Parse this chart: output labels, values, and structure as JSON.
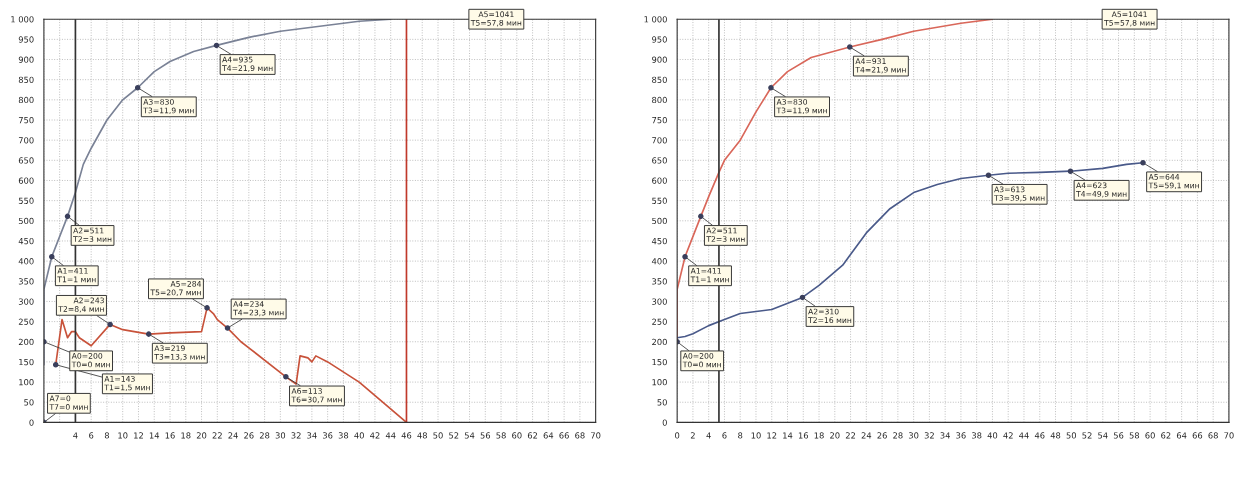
{
  "chart_data": [
    {
      "type": "line",
      "xlim": [
        0,
        70
      ],
      "ylim": [
        0,
        1000
      ],
      "xticks": [
        {
          "value": 0,
          "label": null
        },
        {
          "value": 2,
          "label": null
        },
        4,
        6,
        8,
        10,
        12,
        14,
        16,
        18,
        20,
        22,
        24,
        26,
        28,
        30,
        32,
        34,
        36,
        38,
        40,
        42,
        44,
        46,
        48,
        50,
        52,
        54,
        56,
        58,
        60,
        62,
        64,
        66,
        68,
        70
      ],
      "yticks": [
        0,
        50,
        100,
        150,
        200,
        250,
        300,
        350,
        400,
        450,
        500,
        550,
        600,
        650,
        700,
        750,
        800,
        850,
        900,
        950,
        {
          "value": 1000,
          "label": "1 000"
        }
      ],
      "grid": true,
      "marker": "none",
      "line_style": "solid",
      "series": [
        {
          "color": "#7a8296",
          "x": [
            0,
            0,
            1,
            3,
            4,
            5,
            6,
            8,
            10,
            11.9,
            14,
            16,
            19,
            21.9,
            26,
            30,
            36,
            40,
            44
          ],
          "values": [
            143,
            330,
            411,
            511,
            570,
            640,
            680,
            750,
            800,
            830,
            870,
            895,
            920,
            935,
            955,
            970,
            985,
            995,
            1000
          ]
        },
        {
          "color": "#c8523a",
          "x": [
            1.5,
            2.3,
            3,
            3.5,
            4,
            4.5,
            6,
            8.4,
            10,
            13.3,
            16,
            20,
            20.7,
            21.5,
            22,
            23.3,
            25,
            26,
            30.7,
            32,
            32.5,
            33.5,
            34,
            34.5,
            36,
            40,
            46
          ],
          "values": [
            143,
            255,
            210,
            225,
            225,
            210,
            190,
            243,
            230,
            219,
            222,
            225,
            284,
            270,
            255,
            234,
            200,
            185,
            113,
            95,
            165,
            160,
            150,
            165,
            150,
            100,
            0
          ]
        }
      ],
      "ref_lines": [
        {
          "axis": "x",
          "value": 4,
          "color": "#333333"
        },
        {
          "axis": "x",
          "value": 46,
          "color": "#c0392b"
        }
      ],
      "annotations": [
        {
          "text": "A0=200\nT0=0 мин",
          "x": 0,
          "y": 200
        },
        {
          "text": "A1=143\nT1=1,5 мин",
          "x": 1.5,
          "y": 143
        },
        {
          "text": "A1=411\nT1=1 мин",
          "x": 1,
          "y": 411
        },
        {
          "text": "A2=511\nT2=3 мин",
          "x": 3,
          "y": 511
        },
        {
          "text": "A3=830\nT3=11,9 мин",
          "x": 11.9,
          "y": 830
        },
        {
          "text": "A4=935\nT4=21,9 мин",
          "x": 21.9,
          "y": 935
        },
        {
          "text": "A2=243\nT2=8,4 мин",
          "x": 8.4,
          "y": 243
        },
        {
          "text": "A3=219\nT3=13,3 мин",
          "x": 13.3,
          "y": 219
        },
        {
          "text": "A5=284\nT5=20,7 мин",
          "x": 20.7,
          "y": 284
        },
        {
          "text": "A4=234\nT4=23,3 мин",
          "x": 23.3,
          "y": 234
        },
        {
          "text": "A6=113\nT6=30,7 мин",
          "x": 30.7,
          "y": 113
        },
        {
          "text": "A7=0\nT7=0 мин",
          "x": 0,
          "y": 0
        },
        "A5=1041\nT5=57,8 мин"
      ]
    },
    {
      "type": "line",
      "xlim": [
        0,
        70
      ],
      "ylim": [
        0,
        1000
      ],
      "xticks": [
        0,
        2,
        4,
        6,
        8,
        10,
        12,
        14,
        16,
        18,
        20,
        22,
        24,
        26,
        28,
        30,
        32,
        34,
        36,
        38,
        40,
        42,
        44,
        46,
        48,
        50,
        52,
        54,
        56,
        58,
        60,
        62,
        64,
        66,
        68,
        70
      ],
      "yticks": [
        0,
        50,
        100,
        150,
        200,
        250,
        300,
        350,
        400,
        450,
        500,
        550,
        600,
        650,
        700,
        750,
        800,
        850,
        900,
        950,
        {
          "value": 1000,
          "label": "1 000"
        }
      ],
      "grid": true,
      "marker": "none",
      "line_style": "solid",
      "series": [
        {
          "color": "#d9675a",
          "x": [
            0,
            0,
            1,
            3,
            4,
            5.3,
            6,
            8,
            10,
            11.9,
            14,
            17,
            21.9,
            26,
            30,
            36,
            40
          ],
          "values": [
            200,
            330,
            411,
            511,
            560,
            620,
            650,
            700,
            770,
            830,
            870,
            905,
            931,
            950,
            970,
            990,
            1000
          ]
        },
        {
          "color": "#4a5a8a",
          "x": [
            0,
            1,
            2,
            4,
            6,
            8,
            10,
            12,
            15.9,
            18,
            21,
            24,
            27,
            30,
            33,
            36,
            39.5,
            42,
            46,
            49.9,
            54,
            57,
            59.1
          ],
          "values": [
            210,
            213,
            220,
            240,
            255,
            270,
            275,
            280,
            310,
            340,
            390,
            470,
            530,
            570,
            590,
            605,
            613,
            618,
            620,
            623,
            630,
            640,
            644
          ]
        }
      ],
      "ref_lines": [
        {
          "axis": "x",
          "value": 5.3,
          "color": "#333333"
        }
      ],
      "annotations": [
        {
          "text": "A0=200\nT0=0 мин",
          "x": 0,
          "y": 200
        },
        {
          "text": "A1=411\nT1=1 мин",
          "x": 1,
          "y": 411
        },
        {
          "text": "A2=511\nT2=3 мин",
          "x": 3,
          "y": 511
        },
        {
          "text": "A3=830\nT3=11,9 мин",
          "x": 11.9,
          "y": 830
        },
        {
          "text": "A4=931\nT4=21,9 мин",
          "x": 21.9,
          "y": 931
        },
        {
          "text": "A2=310\nT2=16 мин",
          "x": 15.9,
          "y": 310
        },
        {
          "text": "A3=613\nT3=39,5 мин",
          "x": 39.5,
          "y": 613
        },
        {
          "text": "A4=623\nT4=49,9 мин",
          "x": 49.9,
          "y": 623
        },
        {
          "text": "A5=644\nT5=59,1 мин",
          "x": 59.1,
          "y": 644
        },
        "A5=1041\nT5=57,8 мин"
      ]
    }
  ]
}
